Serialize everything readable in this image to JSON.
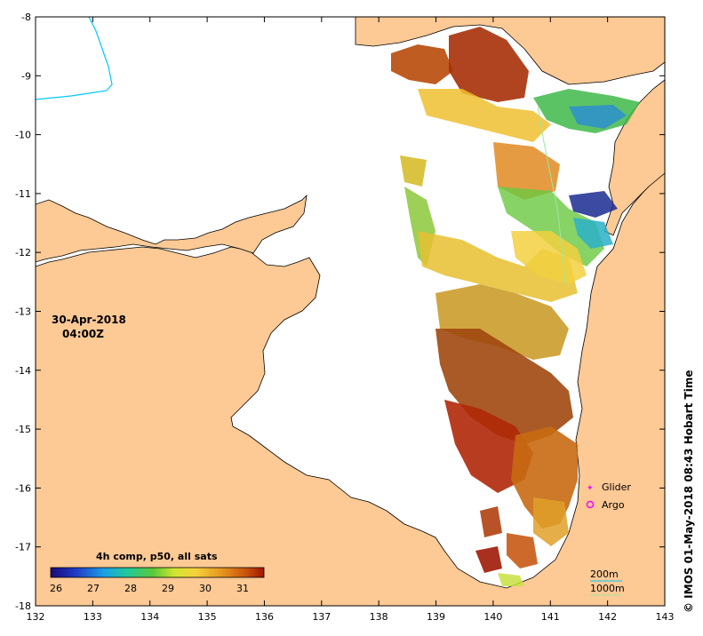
{
  "map": {
    "date_label": "30-Apr-2018",
    "time_label": "04:00Z",
    "x_ticks": [
      "132",
      "133",
      "134",
      "135",
      "136",
      "137",
      "138",
      "139",
      "140",
      "141",
      "142",
      "143"
    ],
    "y_ticks": [
      "-8",
      "-9",
      "-10",
      "-11",
      "-12",
      "-13",
      "-14",
      "-15",
      "-16",
      "-17",
      "-18"
    ],
    "colorbar_title": "4h comp, p50, all sats",
    "colorbar_ticks": [
      "26",
      "27",
      "28",
      "29",
      "30",
      "31"
    ],
    "legend_glider": "Glider",
    "legend_argo": "Argo",
    "scale_200m": "200m",
    "scale_1000m": "1000m",
    "credit": "© IMOS 01-May-2018 08:43 Hobart Time",
    "colors": {
      "land": "#fdc995",
      "water": "#ffffff",
      "glider": "#ff00ff",
      "argo": "#ff00ff",
      "isobath_200": "#00c8ff"
    }
  }
}
